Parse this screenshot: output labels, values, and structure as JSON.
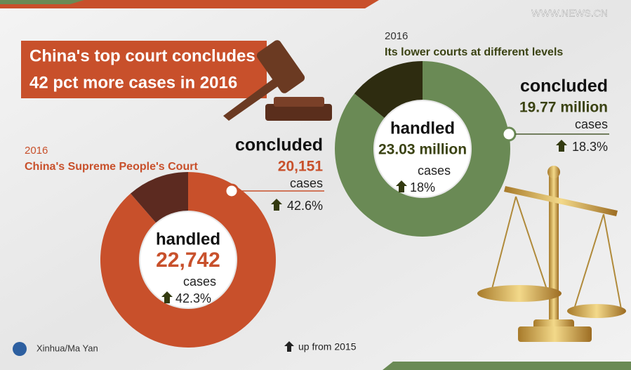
{
  "source": "WWW.NEWS.CN",
  "title": [
    "China's top court concludes",
    "42 pct more cases in 2016"
  ],
  "supreme": {
    "year": "2016",
    "name": "China's Supreme People's Court",
    "handled_label": "handled",
    "handled": {
      "value": 22742,
      "label": "22,742"
    },
    "handled_unit": "cases",
    "handled_growth": "42.3%",
    "concluded_label": "concluded",
    "concluded": {
      "value": 20151,
      "label": "20,151"
    },
    "concluded_unit": "cases",
    "concluded_growth": "42.6%"
  },
  "lower": {
    "year": "2016",
    "name": "Its lower courts at different levels",
    "handled_label": "handled",
    "handled": {
      "value": 23.03,
      "label": "23.03 million"
    },
    "handled_unit": "cases",
    "handled_growth": "18%",
    "concluded_label": "concluded",
    "concluded": {
      "value": 19.77,
      "label": "19.77 million"
    },
    "concluded_unit": "cases",
    "concluded_growth": "18.3%"
  },
  "credit": "Xinhua/Ma Yan",
  "legend": "up from 2015"
}
